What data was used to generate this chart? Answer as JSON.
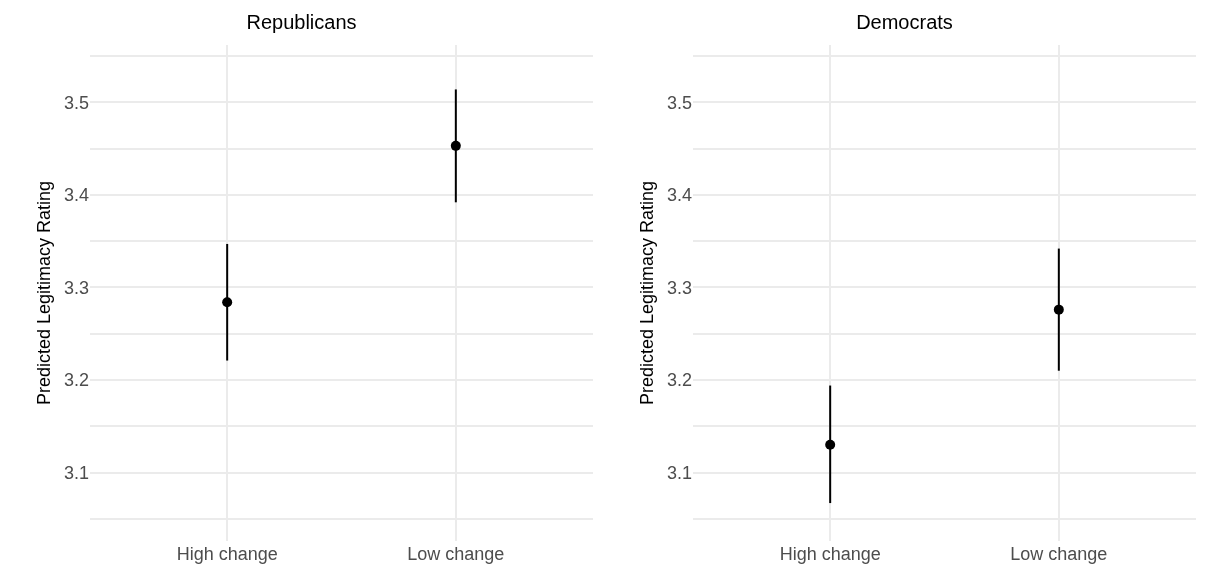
{
  "chart_data": [
    {
      "type": "scatter",
      "title": "Republicans",
      "ylabel": "Predicted Legitimacy Rating",
      "categories": [
        "High change",
        "Low change"
      ],
      "values": [
        3.284,
        3.453
      ],
      "errors": [
        [
          3.221,
          3.347
        ],
        [
          3.392,
          3.514
        ]
      ],
      "color": "#000000",
      "marker": "circle",
      "ylim": [
        3.026,
        3.562
      ],
      "yticks": [
        {
          "value": 3.05,
          "label": null
        },
        3.1,
        {
          "value": 3.15,
          "label": null
        },
        3.2,
        {
          "value": 3.25,
          "label": null
        },
        3.3,
        {
          "value": 3.35,
          "label": null
        },
        3.4,
        {
          "value": 3.45,
          "label": null
        },
        3.5,
        {
          "value": 3.55,
          "label": null
        }
      ],
      "grid": true
    },
    {
      "type": "scatter",
      "title": "Democrats",
      "ylabel": "Predicted Legitimacy Rating",
      "categories": [
        "High change",
        "Low change"
      ],
      "values": [
        3.13,
        3.276
      ],
      "errors": [
        [
          3.067,
          3.194
        ],
        [
          3.21,
          3.342
        ]
      ],
      "color": "#000000",
      "marker": "circle",
      "ylim": [
        3.026,
        3.562
      ],
      "yticks": [
        {
          "value": 3.05,
          "label": null
        },
        3.1,
        {
          "value": 3.15,
          "label": null
        },
        3.2,
        {
          "value": 3.25,
          "label": null
        },
        3.3,
        {
          "value": 3.35,
          "label": null
        },
        3.4,
        {
          "value": 3.45,
          "label": null
        },
        3.5,
        {
          "value": 3.55,
          "label": null
        }
      ],
      "grid": true
    }
  ]
}
